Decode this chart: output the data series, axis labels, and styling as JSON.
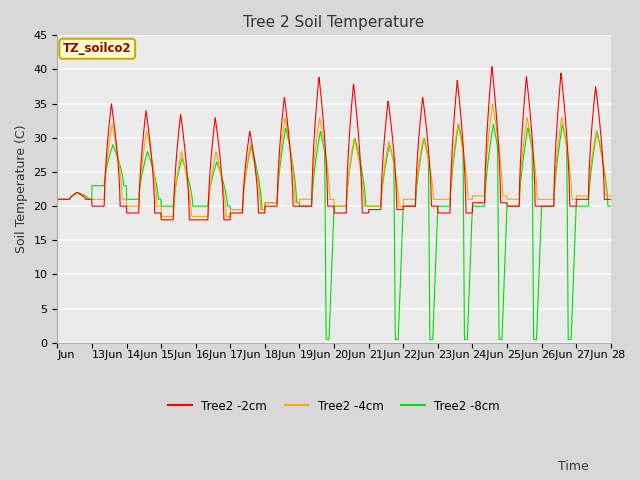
{
  "title": "Tree 2 Soil Temperature",
  "ylabel": "Soil Temperature (C)",
  "xlabel": "Time",
  "ylim": [
    0,
    45
  ],
  "label_text": "TZ_soilco2",
  "legend": [
    "Tree2 -2cm",
    "Tree2 -4cm",
    "Tree2 -8cm"
  ],
  "colors": [
    "#ff0000",
    "#ffa500",
    "#00dd00"
  ],
  "bg_color": "#d8d8d8",
  "ax_bg_color": "#ebebeb",
  "title_fontsize": 11,
  "axis_fontsize": 9,
  "tick_fontsize": 8
}
